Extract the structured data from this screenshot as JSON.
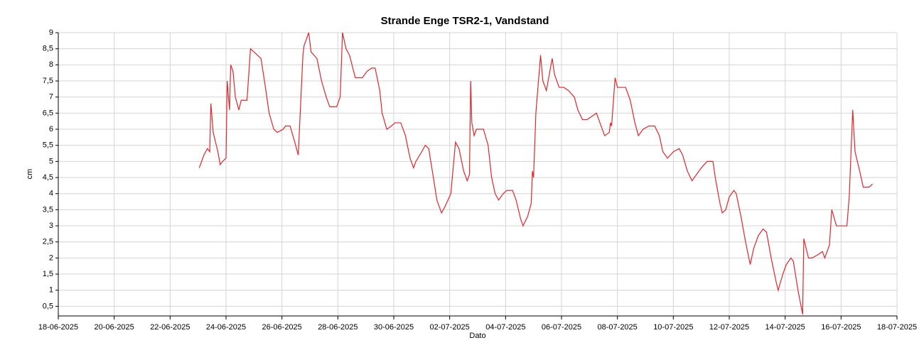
{
  "chart_data": {
    "type": "line",
    "title": "Strande Enge TSR2-1, Vandstand",
    "x_label": "Dato",
    "y_label": "cm",
    "color": "#e3262b",
    "grid": true,
    "xlim": [
      "2025-06-18 00:00",
      "2025-07-18 00:00"
    ],
    "xticks": [
      {
        "value": "2025-06-18 00:00",
        "label": "18-06-2025"
      },
      {
        "value": "2025-06-20 00:00",
        "label": "20-06-2025"
      },
      {
        "value": "2025-06-22 00:00",
        "label": "22-06-2025"
      },
      {
        "value": "2025-06-24 00:00",
        "label": "24-06-2025"
      },
      {
        "value": "2025-06-26 00:00",
        "label": "26-06-2025"
      },
      {
        "value": "2025-06-28 00:00",
        "label": "28-06-2025"
      },
      {
        "value": "2025-06-30 00:00",
        "label": "30-06-2025"
      },
      {
        "value": "2025-07-02 00:00",
        "label": "02-07-2025"
      },
      {
        "value": "2025-07-04 00:00",
        "label": "04-07-2025"
      },
      {
        "value": "2025-07-06 00:00",
        "label": "06-07-2025"
      },
      {
        "value": "2025-07-08 00:00",
        "label": "08-07-2025"
      },
      {
        "value": "2025-07-10 00:00",
        "label": "10-07-2025"
      },
      {
        "value": "2025-07-12 00:00",
        "label": "12-07-2025"
      },
      {
        "value": "2025-07-14 00:00",
        "label": "14-07-2025"
      },
      {
        "value": "2025-07-16 00:00",
        "label": "16-07-2025"
      },
      {
        "value": "2025-07-18 00:00",
        "label": "18-07-2025"
      }
    ],
    "ylim": [
      0.2,
      9
    ],
    "yticks": [
      {
        "value": 0.5,
        "label": "0,5"
      },
      1,
      {
        "value": 1.5,
        "label": "1,5"
      },
      2,
      {
        "value": 2.5,
        "label": "2,5"
      },
      3,
      {
        "value": 3.5,
        "label": "3,5"
      },
      4,
      {
        "value": 4.5,
        "label": "4,5"
      },
      5,
      {
        "value": 5.5,
        "label": "5,5"
      },
      6,
      {
        "value": 6.5,
        "label": "6,5"
      },
      7,
      {
        "value": 7.5,
        "label": "7,5"
      },
      8,
      {
        "value": 8.5,
        "label": "8,5"
      },
      9
    ],
    "x": [
      "2025-06-23 01:00",
      "2025-06-23 05:00",
      "2025-06-23 08:00",
      "2025-06-23 10:00",
      "2025-06-23 11:00",
      "2025-06-23 13:00",
      "2025-06-23 17:00",
      "2025-06-23 19:00",
      "2025-06-23 21:00",
      "2025-06-24 00:00",
      "2025-06-24 01:00",
      "2025-06-24 03:00",
      "2025-06-24 04:00",
      "2025-06-24 06:00",
      "2025-06-24 08:00",
      "2025-06-24 11:00",
      "2025-06-24 13:00",
      "2025-06-24 18:00",
      "2025-06-24 21:00",
      "2025-06-25 00:00",
      "2025-06-25 06:00",
      "2025-06-25 09:00",
      "2025-06-25 13:00",
      "2025-06-25 17:00",
      "2025-06-25 20:00",
      "2025-06-26 01:00",
      "2025-06-26 03:00",
      "2025-06-26 07:00",
      "2025-06-26 11:00",
      "2025-06-26 14:00",
      "2025-06-26 18:00",
      "2025-06-26 19:00",
      "2025-06-26 23:00",
      "2025-06-27 01:00",
      "2025-06-27 06:00",
      "2025-06-27 10:00",
      "2025-06-27 14:00",
      "2025-06-27 17:00",
      "2025-06-27 23:00",
      "2025-06-28 02:00",
      "2025-06-28 04:00",
      "2025-06-28 07:00",
      "2025-06-28 10:00",
      "2025-06-28 15:00",
      "2025-06-28 21:00",
      "2025-06-29 01:00",
      "2025-06-29 05:00",
      "2025-06-29 08:00",
      "2025-06-29 12:00",
      "2025-06-29 14:00",
      "2025-06-29 18:00",
      "2025-06-29 22:00",
      "2025-06-30 01:00",
      "2025-06-30 06:00",
      "2025-06-30 10:00",
      "2025-06-30 14:00",
      "2025-06-30 17:00",
      "2025-06-30 19:00",
      "2025-07-01 00:00",
      "2025-07-01 03:00",
      "2025-07-01 06:00",
      "2025-07-01 10:00",
      "2025-07-01 13:00",
      "2025-07-01 17:00",
      "2025-07-01 20:00",
      "2025-07-02 01:00",
      "2025-07-02 03:00",
      "2025-07-02 05:00",
      "2025-07-02 08:00",
      "2025-07-02 12:00",
      "2025-07-02 15:00",
      "2025-07-02 17:00",
      "2025-07-02 18:00",
      "2025-07-02 19:00",
      "2025-07-02 21:00",
      "2025-07-02 23:00",
      "2025-07-03 05:00",
      "2025-07-03 09:00",
      "2025-07-03 12:00",
      "2025-07-03 15:00",
      "2025-07-03 18:00",
      "2025-07-03 22:00",
      "2025-07-04 01:00",
      "2025-07-04 06:00",
      "2025-07-04 09:00",
      "2025-07-04 13:00",
      "2025-07-04 15:00",
      "2025-07-04 19:00",
      "2025-07-04 22:00",
      "2025-07-04 23:00",
      "2025-07-05 00:00",
      "2025-07-05 02:00",
      "2025-07-05 06:00",
      "2025-07-05 08:00",
      "2025-07-05 11:00",
      "2025-07-05 13:00",
      "2025-07-05 16:00",
      "2025-07-05 18:00",
      "2025-07-05 22:00",
      "2025-07-06 02:00",
      "2025-07-06 06:00",
      "2025-07-06 11:00",
      "2025-07-06 14:00",
      "2025-07-06 18:00",
      "2025-07-06 22:00",
      "2025-07-07 02:00",
      "2025-07-07 06:00",
      "2025-07-07 09:00",
      "2025-07-07 13:00",
      "2025-07-07 17:00",
      "2025-07-07 18:00",
      "2025-07-07 19:00",
      "2025-07-07 22:00",
      "2025-07-08 00:00",
      "2025-07-08 07:00",
      "2025-07-08 11:00",
      "2025-07-08 15:00",
      "2025-07-08 18:00",
      "2025-07-08 22:00",
      "2025-07-09 03:00",
      "2025-07-09 08:00",
      "2025-07-09 12:00",
      "2025-07-09 15:00",
      "2025-07-09 19:00",
      "2025-07-10 00:00",
      "2025-07-10 05:00",
      "2025-07-10 08:00",
      "2025-07-10 12:00",
      "2025-07-10 16:00",
      "2025-07-10 20:00",
      "2025-07-11 00:00",
      "2025-07-11 05:00",
      "2025-07-11 10:00",
      "2025-07-11 12:00",
      "2025-07-11 16:00",
      "2025-07-11 18:00",
      "2025-07-11 21:00",
      "2025-07-12 00:00",
      "2025-07-12 04:00",
      "2025-07-12 06:00",
      "2025-07-12 10:00",
      "2025-07-12 14:00",
      "2025-07-12 18:00",
      "2025-07-12 21:00",
      "2025-07-13 01:00",
      "2025-07-13 05:00",
      "2025-07-13 08:00",
      "2025-07-13 12:00",
      "2025-07-13 16:00",
      "2025-07-13 18:00",
      "2025-07-13 22:00",
      "2025-07-14 01:00",
      "2025-07-14 05:00",
      "2025-07-14 07:00",
      "2025-07-14 11:00",
      "2025-07-14 15:00",
      "2025-07-14 16:00",
      "2025-07-14 20:00",
      "2025-07-14 23:00",
      "2025-07-15 04:00",
      "2025-07-15 08:00",
      "2025-07-15 10:00",
      "2025-07-15 14:00",
      "2025-07-15 16:00",
      "2025-07-15 20:00",
      "2025-07-16 05:00",
      "2025-07-16 07:00",
      "2025-07-16 10:00",
      "2025-07-16 12:00",
      "2025-07-16 16:00",
      "2025-07-16 19:00",
      "2025-07-17 00:00",
      "2025-07-17 03:00"
    ],
    "values": [
      4.8,
      5.2,
      5.4,
      5.3,
      6.8,
      5.9,
      5.3,
      4.9,
      5.0,
      5.1,
      7.5,
      6.6,
      8.0,
      7.8,
      7.0,
      6.6,
      6.9,
      6.9,
      8.5,
      8.4,
      8.2,
      7.5,
      6.5,
      6.0,
      5.9,
      6.0,
      6.1,
      6.1,
      5.6,
      5.2,
      8.3,
      8.6,
      9.0,
      8.4,
      8.2,
      7.5,
      7.0,
      6.7,
      6.7,
      7.0,
      9.0,
      8.5,
      8.3,
      7.6,
      7.6,
      7.8,
      7.9,
      7.9,
      7.2,
      6.5,
      6.0,
      6.1,
      6.2,
      6.2,
      5.8,
      5.1,
      4.8,
      5.0,
      5.3,
      5.5,
      5.4,
      4.5,
      3.8,
      3.4,
      3.6,
      4.0,
      4.8,
      5.6,
      5.4,
      4.7,
      4.4,
      4.6,
      7.5,
      6.2,
      5.8,
      6.0,
      6.0,
      5.5,
      4.5,
      4.0,
      3.8,
      4.0,
      4.1,
      4.1,
      3.8,
      3.2,
      3.0,
      3.3,
      3.7,
      4.7,
      4.5,
      6.5,
      8.3,
      7.5,
      7.2,
      7.6,
      8.2,
      7.7,
      7.3,
      7.3,
      7.2,
      7.0,
      6.6,
      6.3,
      6.3,
      6.4,
      6.5,
      6.2,
      5.8,
      5.9,
      6.2,
      6.1,
      7.6,
      7.3,
      7.3,
      6.9,
      6.2,
      5.8,
      6.0,
      6.1,
      6.1,
      5.8,
      5.3,
      5.1,
      5.3,
      5.4,
      5.2,
      4.7,
      4.4,
      4.6,
      4.8,
      5.0,
      5.0,
      4.5,
      3.7,
      3.4,
      3.5,
      3.9,
      4.1,
      4.0,
      3.3,
      2.5,
      1.8,
      2.3,
      2.7,
      2.9,
      2.8,
      2.0,
      1.3,
      1.0,
      1.5,
      1.8,
      2.0,
      1.9,
      1.0,
      0.25,
      2.6,
      2.0,
      2.0,
      2.1,
      2.2,
      2.0,
      2.4,
      3.5,
      3.0,
      3.0,
      3.9,
      6.6,
      5.3,
      4.7,
      4.2,
      4.2,
      4.3
    ]
  }
}
